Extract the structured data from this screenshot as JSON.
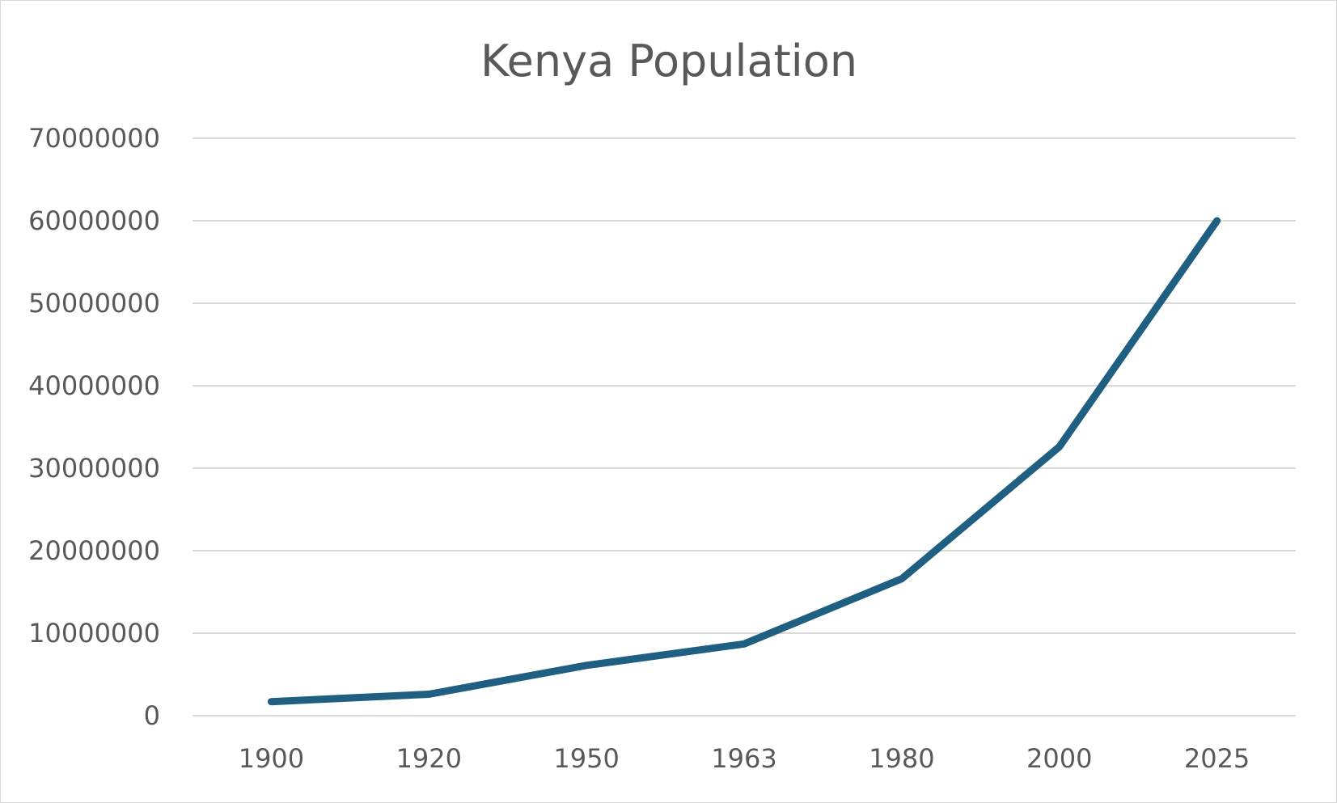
{
  "chart_data": {
    "type": "line",
    "title": "Kenya Population",
    "xlabel": "",
    "ylabel": "",
    "categories": [
      "1900",
      "1920",
      "1950",
      "1963",
      "1980",
      "2000",
      "2025"
    ],
    "series": [
      {
        "name": "Kenya Population",
        "values": [
          1700000,
          2600000,
          6100000,
          8700000,
          16600000,
          32600000,
          60000000
        ],
        "color": "#1f5f82"
      }
    ],
    "ylim": [
      0,
      70000000
    ],
    "yticks": [
      0,
      10000000,
      20000000,
      30000000,
      40000000,
      50000000,
      60000000,
      70000000
    ],
    "ytick_labels": [
      "0",
      "10000000",
      "20000000",
      "30000000",
      "40000000",
      "50000000",
      "60000000",
      "70000000"
    ],
    "grid": true,
    "legend": "none"
  }
}
